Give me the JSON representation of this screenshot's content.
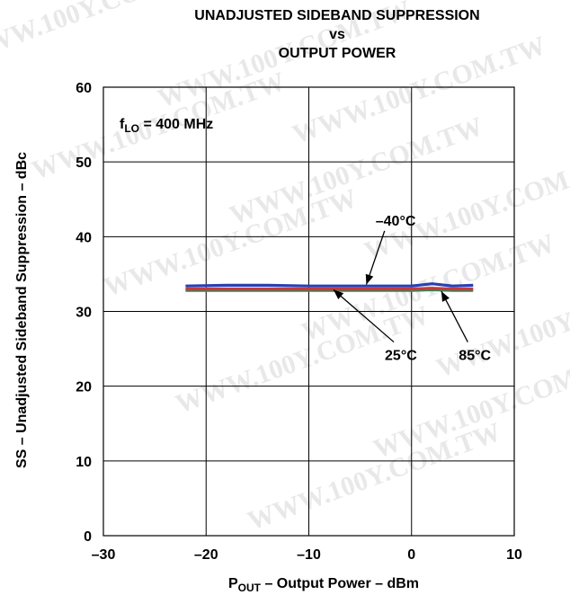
{
  "chart_data": {
    "type": "line",
    "title": [
      "UNADJUSTED SIDEBAND SUPPRESSION",
      "vs",
      "OUTPUT POWER"
    ],
    "xlabel": {
      "main": "P",
      "sub": "OUT",
      "rest": " – Output Power – dBm"
    },
    "ylabel": "SS – Unadjusted Sideband Suppression – dBc",
    "xlim": [
      -30,
      10
    ],
    "ylim": [
      0,
      60
    ],
    "xticks": [
      -30,
      -20,
      -10,
      0,
      10
    ],
    "yticks": [
      0,
      10,
      20,
      30,
      40,
      50,
      60
    ],
    "xtick_labels": [
      "–30",
      "–20",
      "–10",
      "0",
      "10"
    ],
    "ytick_labels": [
      "0",
      "10",
      "20",
      "30",
      "40",
      "50",
      "60"
    ],
    "grid": true,
    "condition": {
      "main": "f",
      "sub": "LO",
      "rest": " = 400 MHz"
    },
    "watermark": "WWW.100Y.COM.TW",
    "series": [
      {
        "name": "–40°C",
        "color": "#2a3fb5",
        "x": [
          -22,
          -18,
          -14,
          -10,
          -6,
          -2,
          0,
          2,
          4,
          6
        ],
        "y": [
          33.4,
          33.5,
          33.5,
          33.4,
          33.4,
          33.4,
          33.4,
          33.7,
          33.4,
          33.5
        ]
      },
      {
        "name": "85°C",
        "color": "#2e8b57",
        "x": [
          -22,
          -18,
          -14,
          -10,
          -6,
          -2,
          0,
          2,
          4,
          6
        ],
        "y": [
          32.8,
          32.8,
          32.8,
          32.8,
          32.8,
          32.8,
          32.8,
          32.9,
          32.8,
          32.8
        ]
      },
      {
        "name": "25°C",
        "color": "#c8383a",
        "x": [
          -22,
          -18,
          -14,
          -10,
          -6,
          -2,
          0,
          2,
          4,
          6
        ],
        "y": [
          33.0,
          33.0,
          33.0,
          33.0,
          33.0,
          33.0,
          33.0,
          33.1,
          33.0,
          33.0
        ]
      }
    ],
    "annotations": [
      {
        "label": "–40°C",
        "series": "–40°C",
        "text_x": -3.5,
        "text_y": 41.5,
        "arrow_to_x": -4.4,
        "arrow_to_y": 33.6
      },
      {
        "label": "25°C",
        "series": "25°C",
        "text_x": -2.6,
        "text_y": 23.5,
        "arrow_to_x": -7.6,
        "arrow_to_y": 32.9
      },
      {
        "label": "85°C",
        "series": "85°C",
        "text_x": 4.6,
        "text_y": 23.5,
        "arrow_to_x": 2.9,
        "arrow_to_y": 32.7
      }
    ]
  }
}
